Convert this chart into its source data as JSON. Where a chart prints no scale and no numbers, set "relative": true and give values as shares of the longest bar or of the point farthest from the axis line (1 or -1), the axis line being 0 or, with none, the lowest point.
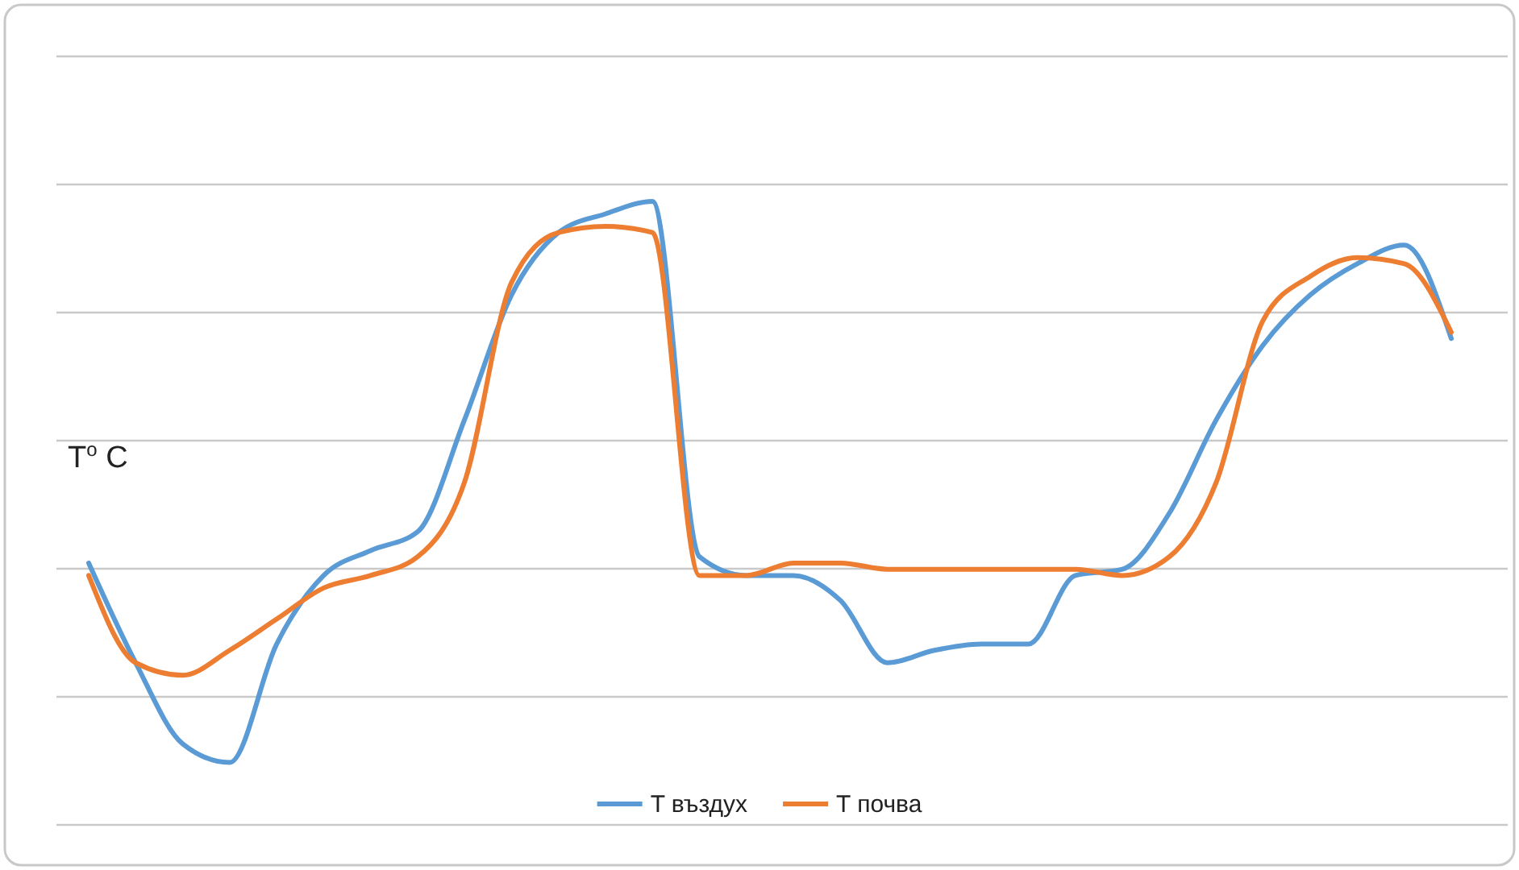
{
  "chart_data": {
    "type": "line",
    "relative": true,
    "ylabel": "T$^{o}$ C",
    "grid": true,
    "legend": "bottom",
    "categories": [
      null,
      null,
      null,
      null,
      null,
      null,
      null,
      null,
      null,
      null,
      null,
      null,
      null,
      null,
      null,
      null,
      null,
      null,
      null,
      null,
      null,
      null,
      null,
      null,
      null,
      null,
      null,
      null,
      null,
      null
    ],
    "series": [
      {
        "name": "T въздух",
        "color": "#5b9bd5",
        "values": [
          0.42,
          0.26,
          0.13,
          0.1,
          0.29,
          0.4,
          0.44,
          0.47,
          0.65,
          0.85,
          0.95,
          0.98,
          1,
          0.43,
          0.4,
          0.4,
          0.36,
          0.26,
          0.28,
          0.29,
          0.29,
          0.4,
          0.41,
          0.5,
          0.65,
          0.77,
          0.85,
          0.9,
          0.93,
          0.78
        ]
      },
      {
        "name": "T почва",
        "color": "#ed7d31",
        "values": [
          0.4,
          0.26,
          0.24,
          0.28,
          0.33,
          0.38,
          0.4,
          0.43,
          0.55,
          0.87,
          0.95,
          0.96,
          0.95,
          0.4,
          0.4,
          0.42,
          0.42,
          0.41,
          0.41,
          0.41,
          0.41,
          0.41,
          0.4,
          0.43,
          0.55,
          0.81,
          0.88,
          0.91,
          0.9,
          0.79
        ]
      }
    ]
  }
}
